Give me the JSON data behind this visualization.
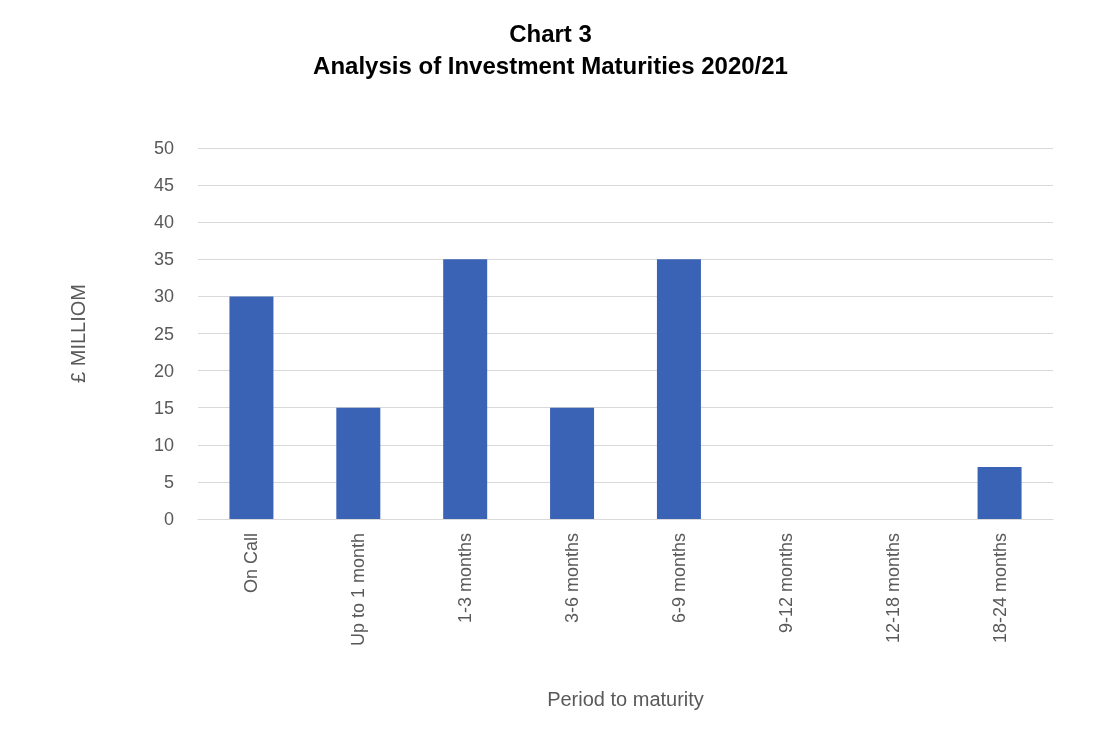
{
  "chart_data": {
    "type": "bar",
    "title": "Chart 3",
    "subtitle": "Analysis of Investment Maturities 2020/21",
    "xlabel": "Period to maturity",
    "ylabel": "£ MILLIOM",
    "categories": [
      "On Call",
      "Up to 1 month",
      "1-3 months",
      "3-6 months",
      "6-9 months",
      "9-12 months",
      "12-18 months",
      "18-24 months"
    ],
    "values": [
      30,
      15,
      35,
      15,
      35,
      0,
      0,
      7
    ],
    "color": "#3a62b5",
    "ylim": [
      0,
      50
    ],
    "yticks": [
      0,
      5,
      10,
      15,
      20,
      25,
      30,
      35,
      40,
      45,
      50
    ],
    "grid": "y"
  }
}
